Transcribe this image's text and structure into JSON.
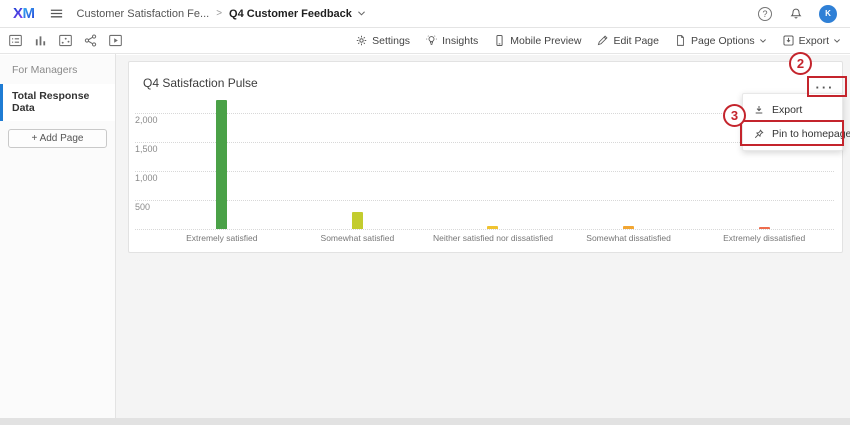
{
  "header": {
    "logo_x": "X",
    "logo_m": "M",
    "breadcrumb": {
      "root": "Customer Satisfaction Fe...",
      "separator": ">",
      "current": "Q4 Customer Feedback"
    },
    "help_label": "?",
    "avatar_initial": "K",
    "avatar_color": "#2f80d6"
  },
  "view_toolbar": {
    "icons": [
      "form-view-icon",
      "bar-chart-view-icon",
      "scatter-view-icon",
      "share-icon",
      "media-view-icon"
    ]
  },
  "toolbar": {
    "items": [
      {
        "label": "Settings",
        "icon": "gear-icon"
      },
      {
        "label": "Insights",
        "icon": "lightbulb-icon"
      },
      {
        "label": "Mobile Preview",
        "icon": "phone-icon"
      },
      {
        "label": "Edit Page",
        "icon": "pencil-icon"
      },
      {
        "label": "Page Options",
        "icon": "page-icon",
        "chevron": true
      },
      {
        "label": "Export",
        "icon": "export-download-icon",
        "chevron": true
      }
    ]
  },
  "sidebar": {
    "section_label": "For Managers",
    "items": [
      {
        "label": "Total Response Data",
        "selected": true
      }
    ],
    "accent_color": "#1f7cd4",
    "add_page_label": "+ Add Page"
  },
  "widget": {
    "title": "Q4 Satisfaction Pulse",
    "menu_button_label": "···"
  },
  "context_menu": {
    "items": [
      {
        "label": "Export",
        "icon": "download-icon"
      },
      {
        "label": "Pin to homepage",
        "icon": "pin-icon",
        "highlighted": true
      }
    ]
  },
  "annotations": {
    "step_2": "2",
    "step_3": "3",
    "highlight_color": "#c4242c"
  },
  "chart_data": {
    "type": "bar",
    "title": "Q4 Satisfaction Pulse",
    "categories": [
      "Extremely satisfied",
      "Somewhat satisfied",
      "Neither satisfied nor dissatisfied",
      "Somewhat dissatisfied",
      "Extremely dissatisfied"
    ],
    "values": [
      2225,
      300,
      50,
      45,
      35
    ],
    "colors": [
      "#4aa147",
      "#c3cc2e",
      "#f0c330",
      "#f2a632",
      "#ee6c4d"
    ],
    "xlabel": "",
    "ylabel": "",
    "ylim": [
      0,
      2400
    ],
    "yticks": [
      500,
      1000,
      1500,
      2000
    ],
    "ytick_labels": [
      "500",
      "1,000",
      "1,500",
      "2,000"
    ],
    "grid": "horizontal-dotted",
    "legend": "none"
  }
}
